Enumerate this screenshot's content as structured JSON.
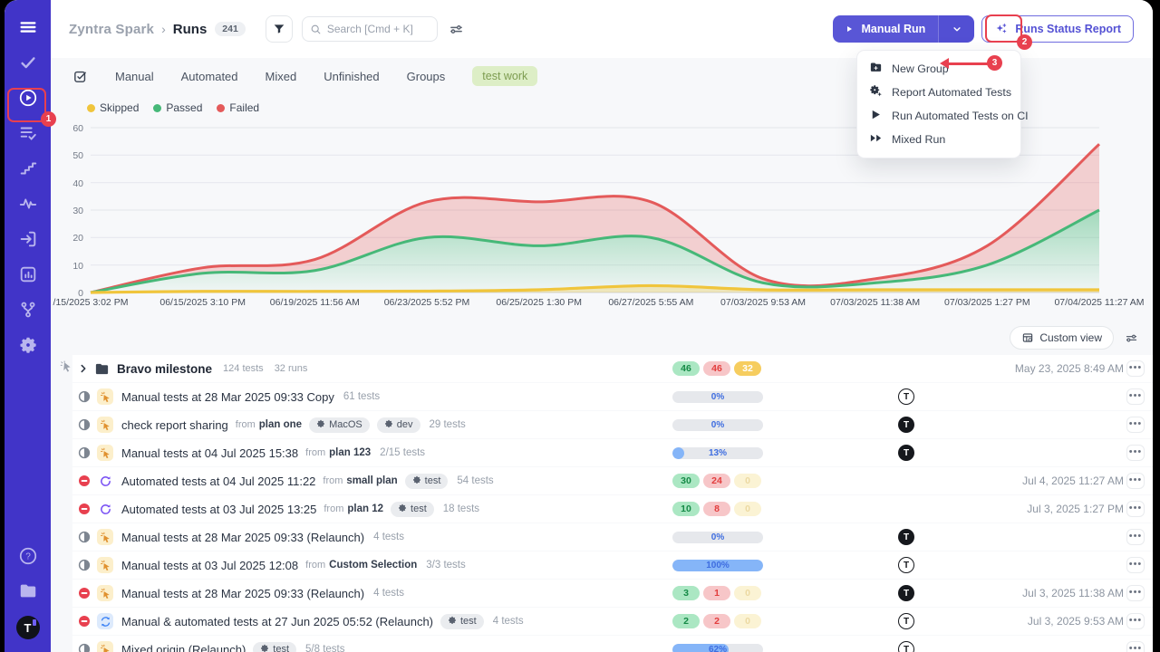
{
  "app": {
    "sidebar_color": "#4134c8",
    "accent": "#5956d6",
    "annotation_color": "#e8404f",
    "page_bg": "#f7f8fa"
  },
  "sidebar": {
    "top_icons": [
      {
        "name": "menu-icon"
      },
      {
        "name": "check-icon"
      },
      {
        "name": "play-circle-icon",
        "annotated": true
      },
      {
        "name": "list-check-icon"
      },
      {
        "name": "steps-icon"
      },
      {
        "name": "pulse-icon"
      },
      {
        "name": "sign-in-icon"
      },
      {
        "name": "chart-icon"
      },
      {
        "name": "branch-icon"
      },
      {
        "name": "gear-icon"
      }
    ],
    "bottom_icons": [
      {
        "name": "help-icon"
      },
      {
        "name": "folder-icon"
      }
    ],
    "avatar_letter": "T"
  },
  "header": {
    "project": "Zyntra Spark",
    "separator": "›",
    "page": "Runs",
    "count": "241",
    "search_placeholder": "Search [Cmd + K]",
    "manual_run_label": "Manual Run",
    "runs_status_report_label": "Runs Status Report"
  },
  "annotations": {
    "step1": "1",
    "step2": "2",
    "step3": "3"
  },
  "menu": {
    "items": [
      {
        "icon": "folder-plus-icon",
        "label": "New Group"
      },
      {
        "icon": "gear-sparkle-icon",
        "label": "Report Automated Tests"
      },
      {
        "icon": "play-icon",
        "label": "Run Automated Tests on CI"
      },
      {
        "icon": "fast-forward-icon",
        "label": "Mixed Run"
      }
    ]
  },
  "tabs": {
    "items": [
      "Manual",
      "Automated",
      "Mixed",
      "Unfinished",
      "Groups"
    ],
    "tag": "test work"
  },
  "chart_data": {
    "type": "area",
    "stacked": true,
    "title": "",
    "xlabel": "",
    "ylabel": "",
    "categories": [
      "/15/2025 3:02 PM",
      "06/15/2025 3:10 PM",
      "06/19/2025 11:56 AM",
      "06/23/2025 5:52 PM",
      "06/25/2025 1:30 PM",
      "06/27/2025 5:55 AM",
      "07/03/2025 9:53 AM",
      "07/03/2025 11:38 AM",
      "07/03/2025 1:27 PM",
      "07/04/2025 11:27 AM"
    ],
    "series": [
      {
        "name": "Skipped",
        "color": "#f0c53c",
        "line_values": [
          0,
          0.4,
          0.4,
          0.5,
          1,
          2.5,
          1,
          1,
          1,
          1
        ]
      },
      {
        "name": "Passed",
        "color": "#46b878",
        "line_values": [
          0,
          7,
          8,
          20,
          17,
          20,
          3.5,
          3.5,
          10,
          30
        ]
      },
      {
        "name": "Failed",
        "color": "#e45a5a",
        "line_values": [
          0,
          9,
          12,
          33,
          33,
          33,
          5,
          5,
          17,
          54
        ]
      }
    ],
    "note": "line_values are cumulative stacked line positions read from the y-axis",
    "ylim": [
      0,
      60
    ],
    "yticks": [
      0,
      10,
      20,
      30,
      40,
      50,
      60
    ],
    "grid": true,
    "legend_position": "top-left"
  },
  "toolbar": {
    "custom_view_label": "Custom view"
  },
  "table": {
    "from_label": "from",
    "menu_glyph": "•••",
    "rows": [
      {
        "kind": "group",
        "title": "Bravo milestone",
        "tests": "124 tests",
        "runs": "32 runs",
        "counts": {
          "passed": "46",
          "failed": "46",
          "skipped": "32",
          "skipped_strong": true
        },
        "date": "May 23, 2025 8:49 AM"
      },
      {
        "kind": "run",
        "status": "in-progress",
        "type": "manual",
        "title": "Manual tests at 28 Mar 2025 09:33 Copy",
        "tests": "61 tests",
        "progress": {
          "pct": 0,
          "label": "0%"
        },
        "avatar": "outline"
      },
      {
        "kind": "run",
        "status": "in-progress",
        "type": "manual",
        "title": "check report sharing",
        "from": "plan one",
        "env": [
          "MacOS",
          "dev"
        ],
        "tests": "29 tests",
        "progress": {
          "pct": 0,
          "label": "0%"
        },
        "avatar": "solid"
      },
      {
        "kind": "run",
        "status": "in-progress",
        "type": "manual",
        "title": "Manual tests at 04 Jul 2025 15:38",
        "from": "plan 123",
        "tests": "2/15 tests",
        "progress": {
          "pct": 13,
          "label": "13%"
        },
        "avatar": "solid"
      },
      {
        "kind": "run",
        "status": "stopped",
        "type": "automated",
        "title": "Automated tests at 04 Jul 2025 11:22",
        "from": "small plan",
        "env": [
          "test"
        ],
        "tests": "54 tests",
        "counts": {
          "passed": "30",
          "failed": "24",
          "skipped": "0"
        },
        "date": "Jul 4, 2025 11:27 AM"
      },
      {
        "kind": "run",
        "status": "stopped",
        "type": "automated",
        "title": "Automated tests at 03 Jul 2025 13:25",
        "from": "plan 12",
        "env": [
          "test"
        ],
        "tests": "18 tests",
        "counts": {
          "passed": "10",
          "failed": "8",
          "skipped": "0"
        },
        "date": "Jul 3, 2025 1:27 PM"
      },
      {
        "kind": "run",
        "status": "in-progress",
        "type": "manual",
        "title": "Manual tests at 28 Mar 2025 09:33 (Relaunch)",
        "tests": "4 tests",
        "progress": {
          "pct": 0,
          "label": "0%"
        },
        "avatar": "solid"
      },
      {
        "kind": "run",
        "status": "in-progress",
        "type": "manual",
        "title": "Manual tests at 03 Jul 2025 12:08",
        "from": "Custom Selection",
        "tests": "3/3 tests",
        "progress": {
          "pct": 100,
          "label": "100%"
        },
        "avatar": "outline"
      },
      {
        "kind": "run",
        "status": "stopped",
        "type": "manual",
        "title": "Manual tests at 28 Mar 2025 09:33 (Relaunch)",
        "tests": "4 tests",
        "counts": {
          "passed": "3",
          "failed": "1",
          "skipped": "0"
        },
        "avatar": "solid",
        "date": "Jul 3, 2025 11:38 AM"
      },
      {
        "kind": "run",
        "status": "stopped",
        "type": "mixed",
        "title": "Manual & automated tests at 27 Jun 2025 05:52 (Relaunch)",
        "env": [
          "test"
        ],
        "tests": "4 tests",
        "counts": {
          "passed": "2",
          "failed": "2",
          "skipped": "0"
        },
        "avatar": "outline",
        "date": "Jul 3, 2025 9:53 AM"
      },
      {
        "kind": "run",
        "status": "in-progress",
        "type": "manual",
        "title": "Mixed origin (Relaunch)",
        "env": [
          "test"
        ],
        "tests": "5/8 tests",
        "progress": {
          "pct": 62,
          "label": "62%"
        },
        "avatar": "outline"
      }
    ]
  }
}
